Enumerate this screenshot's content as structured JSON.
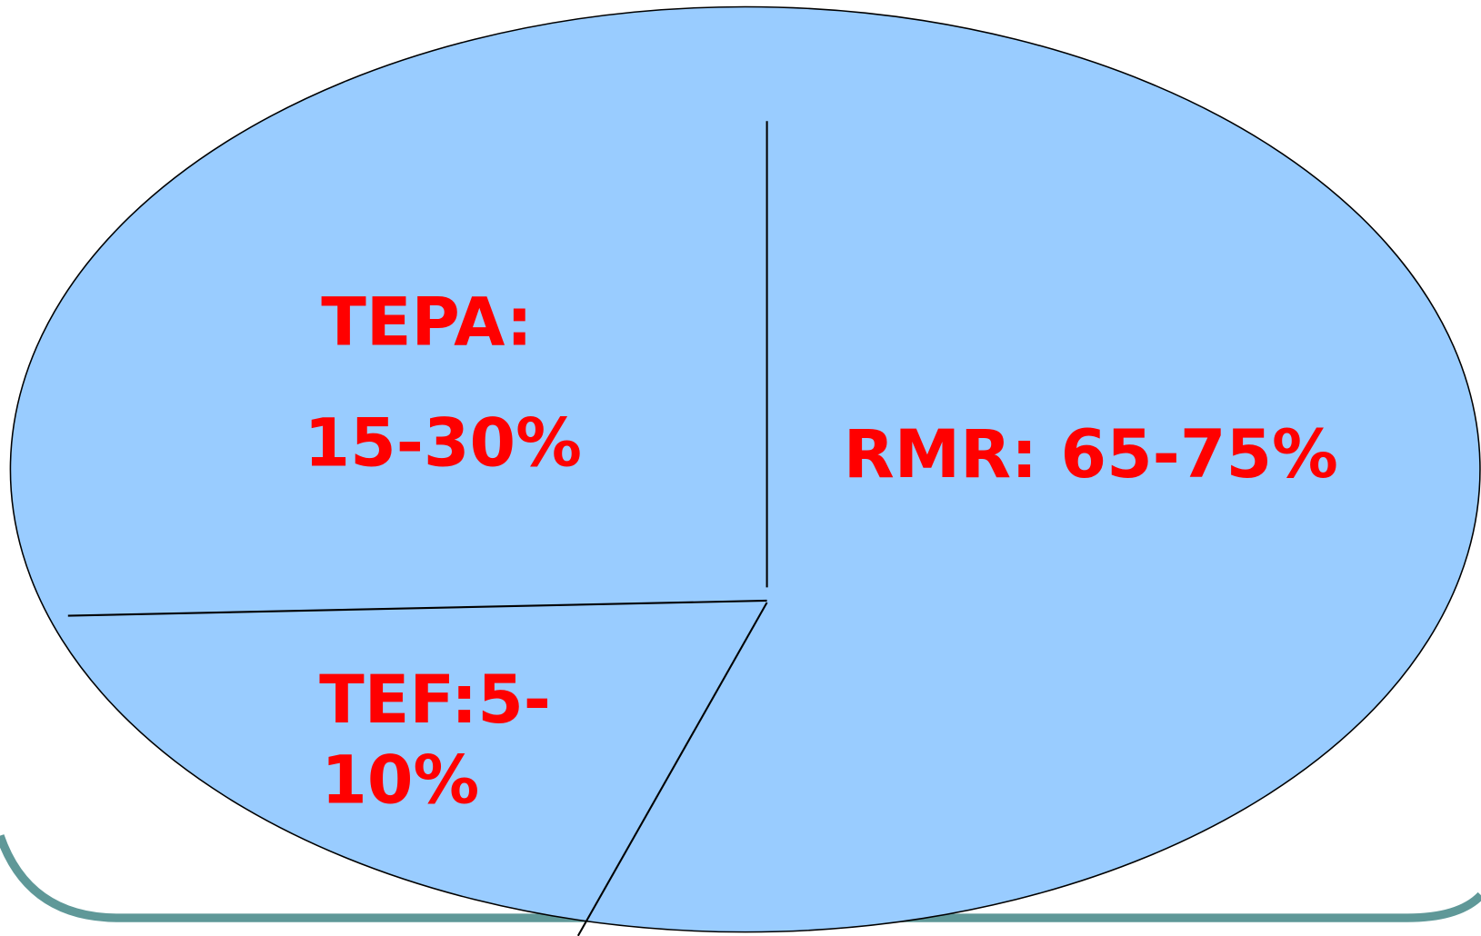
{
  "regions": [
    {
      "lines": [
        "TEPA:",
        "15-30%"
      ]
    },
    {
      "lines": [
        "RMR: 65-75%"
      ]
    },
    {
      "lines": [
        "TEF:5-",
        "10%"
      ]
    }
  ]
}
